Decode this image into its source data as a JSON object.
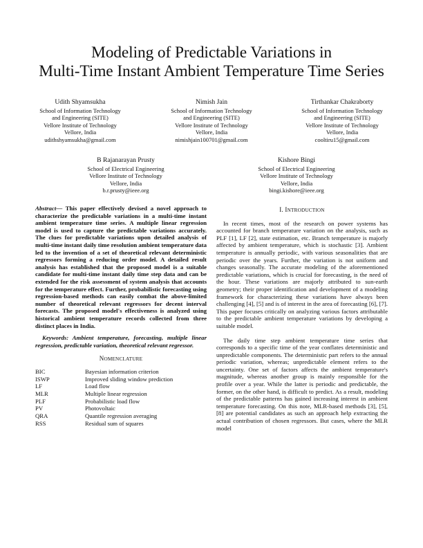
{
  "title": {
    "line1": "Modeling of Predictable Variations in",
    "line2": "Multi-Time Instant Ambient Temperature Time Series"
  },
  "authors": [
    {
      "name": "Udith Shyamsukha",
      "affil1": "School of Information Technology",
      "affil2": "and Engineering (SITE)",
      "affil3": "Vellore Institute of Technology",
      "affil4": "Vellore, India",
      "email": "udithshyamsukha@gmail.com"
    },
    {
      "name": "Nimish Jain",
      "affil1": "School of Information Technology",
      "affil2": "and Engineering (SITE)",
      "affil3": "Vellore Institute of Technology",
      "affil4": "Vellore, India",
      "email": "nimishjain100701@gmail.com"
    },
    {
      "name": "Tirthankar Chakraborty",
      "affil1": "School of Information Technology",
      "affil2": "and Engineering (SITE)",
      "affil3": "Vellore Institute of Technology",
      "affil4": "Vellore, India",
      "email": "cooltiru15@gmail.com"
    },
    {
      "name": "B Rajanarayan Prusty",
      "affil1": "School of Electrical Engineering",
      "affil2": "Vellore Institute of Technology",
      "affil3": "Vellore, India",
      "email": "b.r.prusty@ieee.org"
    },
    {
      "name": "Kishore Bingi",
      "affil1": "School of Electrical Engineering",
      "affil2": "Vellore Institute of Technology",
      "affil3": "Vellore, India",
      "email": "bingi.kishore@ieee.org"
    }
  ],
  "abstract": {
    "label": "Abstract",
    "text": "— This paper effectively devised a novel approach to characterize the predictable variations in a multi-time instant ambient temperature time series. A multiple linear regression model is used to capture the predictable variations accurately. The clues for predictable variations upon detailed analysis of multi-time instant daily time resolution ambient temperature data led to the invention of a set of theoretical relevant deterministic regressors forming a reducing order model. A detailed result analysis has established that the proposed model is a suitable candidate for multi-time instant daily time step data and can be extended for the risk assessment of system analysis that accounts for the temperature effect. Further, probabilistic forecasting using regression-based methods can easily combat the above-limited number of theoretical relevant regressors for decent interval forecasts. The proposed model's effectiveness is analyzed using historical ambient temperature records collected from three distinct places in India."
  },
  "keywords": {
    "label": "Keywords:",
    "text": "Ambient temperature, forecasting, multiple linear regression, predictable variation, theoretical relevant regressor."
  },
  "nomenclature": {
    "heading_first": "N",
    "heading_rest": "OMENCLATURE",
    "entries": [
      {
        "abbr": "BIC",
        "desc": "Bayesian information criterion"
      },
      {
        "abbr": "ISWP",
        "desc": "Improved sliding window prediction"
      },
      {
        "abbr": "LF",
        "desc": "Load flow"
      },
      {
        "abbr": "MLR",
        "desc": "Multiple linear regression"
      },
      {
        "abbr": "PLF",
        "desc": "Probabilistic load flow"
      },
      {
        "abbr": "PV",
        "desc": "Photovoltaic"
      },
      {
        "abbr": "QRA",
        "desc": "Quantile regression averaging"
      },
      {
        "abbr": "RSS",
        "desc": "Residual sum of squares"
      }
    ]
  },
  "introduction": {
    "heading_num": "I. I",
    "heading_rest": "NTRODUCTION",
    "para1": "In recent times, most of the research on power systems has accounted for branch temperature variation on the analysis, such as PLF [1], LF [2], state estimation, etc. Branch temperature is majorly affected by ambient temperature, which is stochastic [3]. Ambient temperature is annually periodic, with various seasonalities that are periodic over the years. Further, the variation is not uniform and changes seasonally. The accurate modeling of the aforementioned predictable variations, which is crucial for forecasting, is the need of the hour. These variations are majorly attributed to sun-earth geometry; their proper identification and development of a modeling framework for characterizing these variations have always been challenging [4], [5] and is of interest in the area of forecasting [6], [7]. This paper focuses critically on analyzing various factors attributable to the predictable ambient temperature variations by developing a suitable model.",
    "para2": "The daily time step ambient temperature time series that corresponds to a specific time of the year conflates deterministic and unpredictable components. The deterministic part refers to the annual periodic variation, whereas; unpredictable element refers to the uncertainty. One set of factors affects the ambient temperature's magnitude, whereas another group is mainly responsible for the profile over a year. While the latter is periodic and predictable, the former, on the other hand, is difficult to predict. As a result, modeling of the predictable patterns has gained increasing interest in ambient temperature forecasting. On this note, MLR-based methods [3], [5], [8] are potential candidates as such an approach help extracting the actual contribution of chosen regressors. But cases, where the MLR model"
  }
}
